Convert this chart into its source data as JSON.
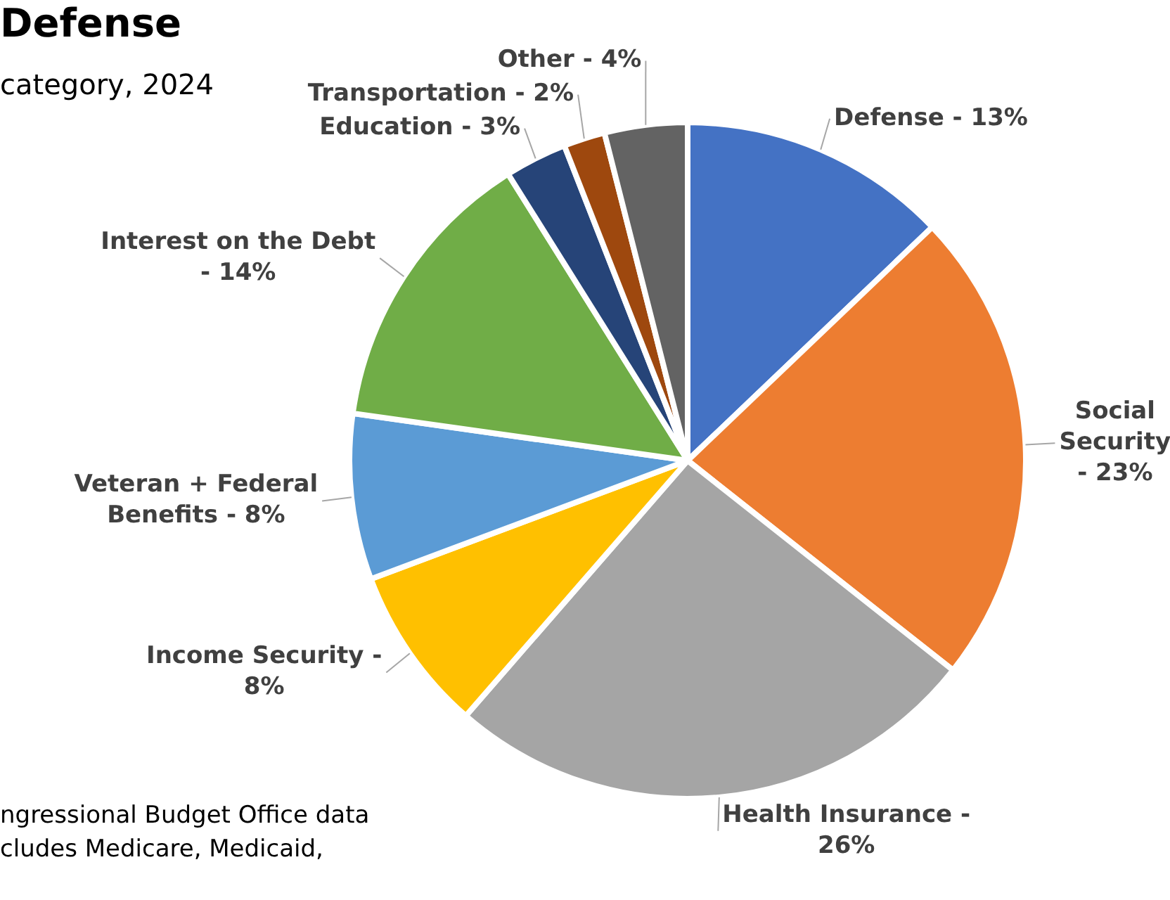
{
  "chart_data": {
    "type": "pie",
    "title": "Defense",
    "subtitle": "category, 2024",
    "categories": [
      "Defense - 13%",
      "Social Security - 23%",
      "Health Insurance - 26%",
      "Income Security - 8%",
      "Veteran + Federal Benefits - 8%",
      "Interest on the Debt - 14%",
      "Education - 3%",
      "Transportation - 2%",
      "Other - 4%"
    ],
    "values": [
      13,
      23,
      26,
      8,
      8,
      14,
      3,
      2,
      4
    ],
    "colors": [
      "#4472c4",
      "#ed7d31",
      "#a5a5a5",
      "#ffc000",
      "#5b9bd5",
      "#70ad47",
      "#264478",
      "#9e480e",
      "#636363"
    ],
    "annotations": [
      "ngressional Budget Office data",
      "cludes Medicare, Medicaid,"
    ],
    "legend": false
  }
}
